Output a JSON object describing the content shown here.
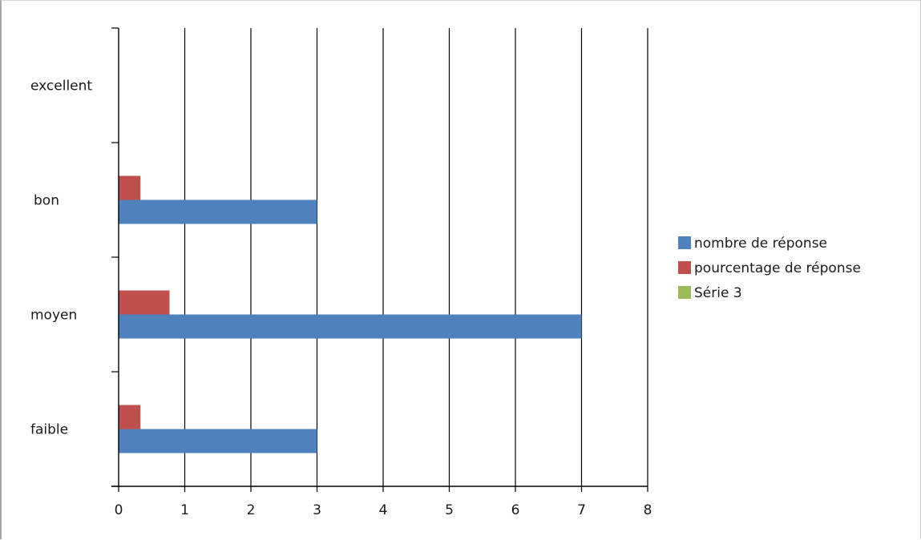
{
  "chart_data": {
    "type": "bar",
    "orientation": "horizontal",
    "title": "",
    "xlabel": "",
    "ylabel": "",
    "categories": [
      "faible",
      "moyen",
      "bon",
      "excellent"
    ],
    "series": [
      {
        "name": "nombre de réponse",
        "color": "#4f81bd",
        "values": [
          3,
          7,
          3,
          0
        ]
      },
      {
        "name": "pourcentage de réponse",
        "color": "#c0504d",
        "values": [
          0.33,
          0.77,
          0.33,
          0
        ]
      },
      {
        "name": "Série 3",
        "color": "#9bbb59",
        "values": [
          0,
          0,
          0,
          0
        ]
      }
    ],
    "xlim": [
      0,
      8
    ],
    "xticks": [
      "0",
      "1",
      "2",
      "3",
      "4",
      "5",
      "6",
      "7",
      "8"
    ],
    "grid": "vertical major gridlines",
    "legend": "right"
  }
}
